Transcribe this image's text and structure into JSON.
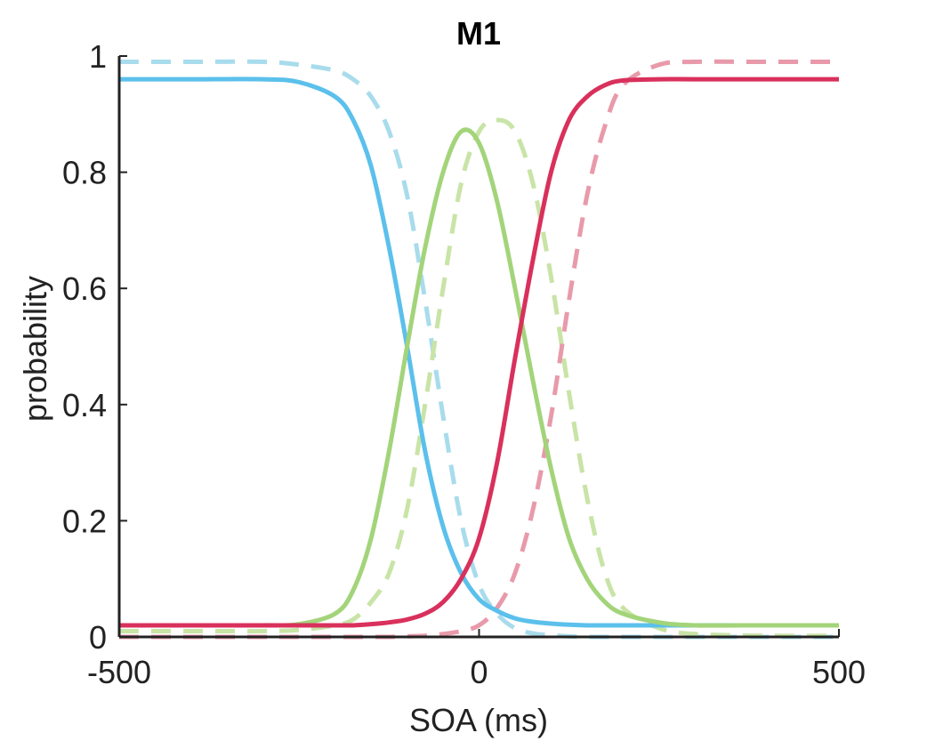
{
  "chart_data": {
    "type": "line",
    "title": "M1",
    "xlabel": "SOA (ms)",
    "ylabel": "probability",
    "xlim": [
      -500,
      500
    ],
    "ylim": [
      0,
      1
    ],
    "xticks": [
      -500,
      0,
      500
    ],
    "xtick_labels": [
      "-500",
      "0",
      "500"
    ],
    "yticks": [
      0,
      0.2,
      0.4,
      0.6,
      0.8,
      1
    ],
    "ytick_labels": [
      "0",
      "0.2",
      "0.4",
      "0.6",
      "0.8",
      "1"
    ],
    "grid": false,
    "legend": "none",
    "x": [
      -500,
      -400,
      -300,
      -250,
      -200,
      -175,
      -150,
      -125,
      -100,
      -75,
      -50,
      -25,
      0,
      25,
      50,
      75,
      100,
      125,
      150,
      175,
      200,
      250,
      300,
      400,
      500
    ],
    "series": [
      {
        "color": "#5bc0eb",
        "style": "solid",
        "values": [
          0.96,
          0.96,
          0.96,
          0.955,
          0.93,
          0.89,
          0.81,
          0.67,
          0.5,
          0.32,
          0.19,
          0.11,
          0.065,
          0.045,
          0.032,
          0.026,
          0.023,
          0.021,
          0.02,
          0.02,
          0.02,
          0.02,
          0.02,
          0.02,
          0.02
        ]
      },
      {
        "color": "#a3d47a",
        "style": "solid",
        "values": [
          0.02,
          0.02,
          0.02,
          0.022,
          0.04,
          0.08,
          0.17,
          0.32,
          0.5,
          0.67,
          0.8,
          0.87,
          0.85,
          0.75,
          0.6,
          0.44,
          0.29,
          0.17,
          0.1,
          0.06,
          0.04,
          0.025,
          0.02,
          0.02,
          0.02
        ]
      },
      {
        "color": "#d9305c",
        "style": "solid",
        "values": [
          0.02,
          0.02,
          0.02,
          0.02,
          0.02,
          0.02,
          0.022,
          0.025,
          0.03,
          0.04,
          0.06,
          0.1,
          0.17,
          0.3,
          0.48,
          0.65,
          0.8,
          0.89,
          0.93,
          0.95,
          0.958,
          0.96,
          0.96,
          0.96,
          0.96
        ]
      },
      {
        "color": "#a8dcec",
        "style": "dashed",
        "values": [
          0.99,
          0.99,
          0.99,
          0.985,
          0.975,
          0.96,
          0.93,
          0.87,
          0.76,
          0.58,
          0.38,
          0.2,
          0.09,
          0.04,
          0.015,
          0.006,
          0.003,
          0.001,
          0,
          0,
          0,
          0,
          0,
          0,
          0
        ]
      },
      {
        "color": "#c8e4a6",
        "style": "dashed",
        "values": [
          0.01,
          0.01,
          0.01,
          0.012,
          0.02,
          0.03,
          0.06,
          0.11,
          0.22,
          0.4,
          0.6,
          0.78,
          0.87,
          0.89,
          0.87,
          0.78,
          0.62,
          0.42,
          0.24,
          0.11,
          0.05,
          0.015,
          0.005,
          0.002,
          0.002
        ]
      },
      {
        "color": "#e89aaa",
        "style": "dashed",
        "values": [
          0,
          0,
          0,
          0,
          0,
          0,
          0,
          0,
          0.001,
          0.002,
          0.005,
          0.01,
          0.02,
          0.05,
          0.11,
          0.22,
          0.38,
          0.58,
          0.76,
          0.88,
          0.95,
          0.985,
          0.99,
          0.99,
          0.99
        ]
      }
    ]
  }
}
